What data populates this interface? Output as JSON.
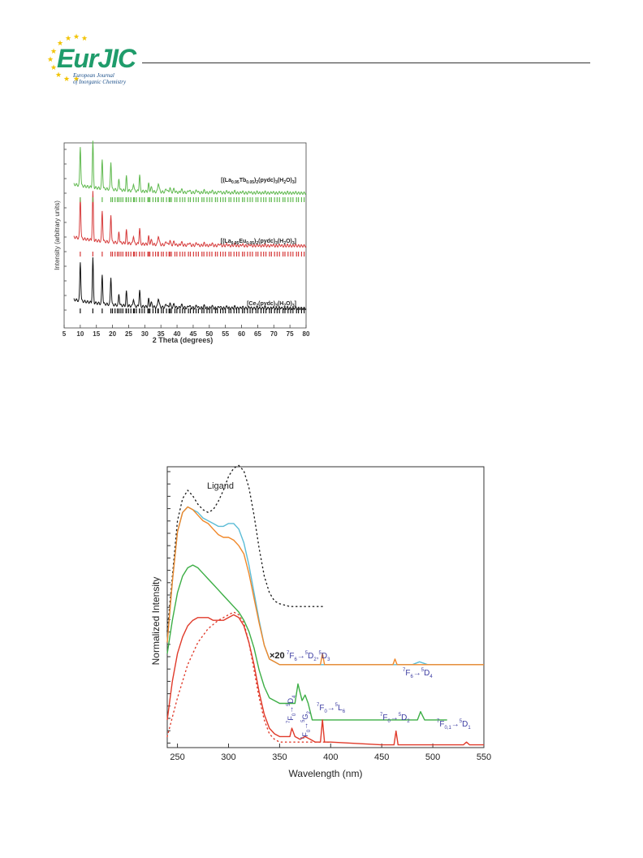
{
  "header": {
    "logo_main_left": "Eur",
    "logo_main_right": "JIC",
    "logo_sub1": "European Journal",
    "logo_sub2": "of Inorganic Chemistry"
  },
  "chart_data": [
    {
      "type": "line",
      "xlabel": "2 Theta (degrees)",
      "ylabel": "Intensity (arbitrary units)",
      "xlim": [
        5,
        80
      ],
      "xticks": [
        "5",
        "10",
        "15",
        "20",
        "25",
        "30",
        "35",
        "40",
        "45",
        "50",
        "55",
        "60",
        "65",
        "70",
        "75",
        "80"
      ],
      "peaks_2theta": [
        10.0,
        13.9,
        16.8,
        19.5,
        22.0,
        24.3,
        26.5,
        28.4,
        31.2,
        34.2,
        37.8
      ],
      "series": [
        {
          "name": "[(La0.95Tb0.05)2(pydc)3(H2O)3]",
          "label_main": "[(La",
          "label_sub1": "0.95",
          "label_mid": "Tb",
          "label_sub2": "0.05",
          "label_mid2": ")",
          "label_sub3": "2",
          "label_mid3": "(pydc)",
          "label_sub4": "3",
          "label_mid4": "(H",
          "label_sub5": "2",
          "label_mid5": "O)",
          "label_sub6": "3",
          "label_end": "]",
          "color": "#5fb94e",
          "peak_heights": [
            0.62,
            0.72,
            0.46,
            0.44,
            0.18,
            0.22,
            0.12,
            0.26,
            0.12,
            0.1,
            0.08
          ]
        },
        {
          "name": "[(La0.95Eu0.05)2(pydc)3(H2O)3]",
          "label_main": "[(La",
          "label_sub1": "0.95",
          "label_mid": "Eu",
          "label_sub2": "0.05",
          "label_mid2": ")",
          "label_sub3": "2",
          "label_mid3": "(pydc)",
          "label_sub4": "3",
          "label_mid4": "(H",
          "label_sub5": "2",
          "label_mid5": "O)",
          "label_sub6": "3",
          "label_end": "]",
          "color": "#d63a3a",
          "peak_heights": [
            0.66,
            0.76,
            0.48,
            0.44,
            0.18,
            0.2,
            0.13,
            0.25,
            0.12,
            0.1,
            0.08
          ]
        },
        {
          "name": "[Ce2(pydc)3(H2O)3]",
          "label_main": "[Ce",
          "label_sub1": "2",
          "label_mid": "(pydc)",
          "label_sub2": "3",
          "label_mid2": "(H",
          "label_sub3": "2",
          "label_mid3": "O)",
          "label_sub4": "3",
          "label_mid4": "]",
          "label_sub5": "",
          "label_mid5": "",
          "label_sub6": "",
          "label_end": "",
          "color": "#111111",
          "peak_heights": [
            0.62,
            0.7,
            0.46,
            0.44,
            0.18,
            0.22,
            0.12,
            0.26,
            0.12,
            0.1,
            0.08
          ]
        }
      ]
    },
    {
      "type": "line",
      "xlabel": "Wavelength (nm)",
      "ylabel": "Normalized Intensity",
      "xlim": [
        240,
        550
      ],
      "xticks": [
        "250",
        "300",
        "350",
        "400",
        "450",
        "500",
        "550"
      ],
      "series": [
        {
          "name": "Ligand",
          "color": "#222222",
          "style": "dotted",
          "x": [
            240,
            245,
            250,
            255,
            260,
            265,
            270,
            275,
            280,
            285,
            290,
            295,
            300,
            305,
            310,
            315,
            320,
            325,
            330,
            335,
            340,
            345,
            350,
            360,
            370,
            380,
            390,
            395
          ],
          "y": [
            0.42,
            0.62,
            0.82,
            0.9,
            0.93,
            0.91,
            0.88,
            0.86,
            0.85,
            0.86,
            0.89,
            0.93,
            0.98,
            1.01,
            1.02,
            1.0,
            0.94,
            0.84,
            0.72,
            0.62,
            0.56,
            0.53,
            0.52,
            0.51,
            0.51,
            0.51,
            0.51,
            0.51
          ]
        },
        {
          "name": "",
          "color": "#5bbcd6",
          "style": "solid",
          "x": [
            240,
            245,
            250,
            255,
            260,
            265,
            270,
            275,
            280,
            285,
            290,
            295,
            300,
            305,
            310,
            315,
            320,
            325,
            330,
            335,
            340,
            345,
            350,
            360,
            380,
            392,
            400,
            450,
            463,
            480,
            487,
            495,
            550
          ],
          "y": [
            0.38,
            0.6,
            0.78,
            0.85,
            0.87,
            0.86,
            0.85,
            0.83,
            0.82,
            0.81,
            0.8,
            0.8,
            0.81,
            0.81,
            0.79,
            0.74,
            0.66,
            0.56,
            0.46,
            0.37,
            0.32,
            0.31,
            0.3,
            0.3,
            0.3,
            0.3,
            0.3,
            0.3,
            0.3,
            0.3,
            0.31,
            0.3,
            0.3
          ]
        },
        {
          "name": "",
          "color": "#f0882a",
          "style": "solid",
          "x": [
            240,
            245,
            250,
            255,
            260,
            265,
            270,
            275,
            280,
            285,
            290,
            295,
            300,
            305,
            310,
            315,
            320,
            325,
            330,
            335,
            340,
            345,
            350,
            360,
            380,
            390,
            392,
            394,
            400,
            450,
            461,
            463,
            465,
            480,
            550
          ],
          "y": [
            0.38,
            0.6,
            0.78,
            0.85,
            0.87,
            0.86,
            0.84,
            0.82,
            0.81,
            0.79,
            0.77,
            0.76,
            0.76,
            0.75,
            0.73,
            0.7,
            0.63,
            0.54,
            0.45,
            0.37,
            0.32,
            0.31,
            0.3,
            0.3,
            0.3,
            0.3,
            0.34,
            0.3,
            0.3,
            0.3,
            0.3,
            0.32,
            0.3,
            0.3,
            0.3
          ]
        },
        {
          "name": "",
          "color": "#3cae45",
          "style": "solid",
          "x": [
            240,
            245,
            250,
            255,
            260,
            265,
            270,
            275,
            280,
            285,
            290,
            295,
            300,
            305,
            310,
            315,
            320,
            325,
            330,
            335,
            340,
            345,
            350,
            360,
            365,
            368,
            372,
            375,
            378,
            382,
            390,
            400,
            450,
            480,
            485,
            488,
            492,
            500,
            514
          ],
          "y": [
            0.34,
            0.46,
            0.56,
            0.62,
            0.65,
            0.66,
            0.65,
            0.63,
            0.61,
            0.59,
            0.57,
            0.55,
            0.53,
            0.51,
            0.49,
            0.46,
            0.42,
            0.36,
            0.28,
            0.22,
            0.18,
            0.17,
            0.16,
            0.16,
            0.16,
            0.23,
            0.17,
            0.19,
            0.16,
            0.1,
            0.1,
            0.1,
            0.1,
            0.1,
            0.1,
            0.13,
            0.1,
            0.1,
            0.1
          ]
        },
        {
          "name": "",
          "color": "#e03a2a",
          "style": "solid",
          "x": [
            240,
            245,
            250,
            255,
            260,
            265,
            270,
            275,
            280,
            285,
            290,
            295,
            300,
            305,
            310,
            315,
            320,
            325,
            330,
            335,
            340,
            345,
            350,
            360,
            362,
            365,
            370,
            375,
            380,
            385,
            390,
            392,
            394,
            400,
            450,
            462,
            464,
            466,
            480,
            530,
            533,
            536,
            550
          ],
          "y": [
            0.1,
            0.24,
            0.34,
            0.4,
            0.44,
            0.46,
            0.47,
            0.47,
            0.47,
            0.46,
            0.46,
            0.46,
            0.47,
            0.48,
            0.47,
            0.44,
            0.38,
            0.3,
            0.2,
            0.12,
            0.07,
            0.05,
            0.04,
            0.04,
            0.07,
            0.04,
            0.03,
            0.04,
            0.03,
            0.02,
            0.02,
            0.1,
            0.02,
            0.02,
            0.01,
            0.01,
            0.06,
            0.01,
            0.01,
            0.01,
            0.02,
            0.01,
            0.01
          ]
        },
        {
          "name": "",
          "color": "#e03a2a",
          "style": "dotted",
          "x": [
            240,
            250,
            260,
            270,
            280,
            290,
            300,
            305,
            310,
            315,
            320,
            325,
            330,
            335,
            340,
            345,
            350,
            360,
            380,
            400
          ],
          "y": [
            0.04,
            0.18,
            0.3,
            0.38,
            0.43,
            0.46,
            0.48,
            0.49,
            0.48,
            0.45,
            0.38,
            0.28,
            0.18,
            0.1,
            0.05,
            0.03,
            0.02,
            0.02,
            0.02,
            0.02
          ]
        }
      ],
      "annotations": {
        "ligand": "Ligand",
        "x20": "×20",
        "a1_sup1": "7",
        "a1_b1": "F",
        "a1_sub1": "6",
        "a1_arrow": "→",
        "a1_sup2": "5",
        "a1_b2": "D",
        "a1_sub2": "2",
        "a1_comma": ",",
        "a1_sup3": "5",
        "a1_b3": "D",
        "a1_sub3": "3",
        "a2_sup1": "7",
        "a2_b1": "F",
        "a2_sub1": "6",
        "a2_arrow": "→",
        "a2_sup2": "5",
        "a2_b2": "D",
        "a2_sub2": "4",
        "a3_text": "F",
        "a3_sup1": "7",
        "a3_sub1": "0",
        "a3_arrow": "→",
        "a3_sup2": "5",
        "a3_b2": "D",
        "a3_sub2": "4",
        "a4_sup1": "7",
        "a4_b1": "F",
        "a4_sub1": "0",
        "a4_arrow": "→",
        "a4_sup2": "5",
        "a4_b2": "G",
        "a4_sub2": "2",
        "a5_sup1": "7",
        "a5_b1": "F",
        "a5_sub1": "0",
        "a5_arrow": "→",
        "a5_sup2": "5",
        "a5_b2": "L",
        "a5_sub2": "6",
        "a6_sup1": "7",
        "a6_b1": "F",
        "a6_sub1": "0",
        "a6_arrow": "→",
        "a6_sup2": "5",
        "a6_b2": "D",
        "a6_sub2": "2",
        "a7_sup1": "7",
        "a7_b1": "F",
        "a7_sub1": "0,1",
        "a7_arrow": "→",
        "a7_sup2": "5",
        "a7_b2": "D",
        "a7_sub2": "1"
      }
    }
  ]
}
